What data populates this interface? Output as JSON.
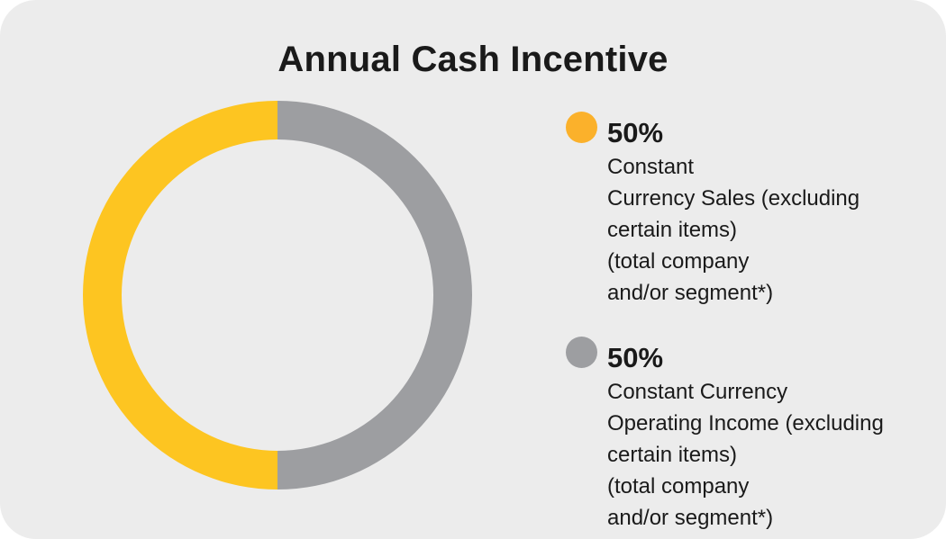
{
  "chart_data": {
    "type": "pie",
    "title": "Annual Cash Incentive",
    "donut": true,
    "slices": [
      {
        "label": "Constant\nCurrency Sales (excluding\ncertain items)\n(total company\nand/or segment*)",
        "value": 50,
        "value_label": "50%",
        "legend_color": "#fbb12b",
        "ring_color": "#fdc521"
      },
      {
        "label": "Constant Currency\nOperating Income (excluding\ncertain items)\n(total company\nand/or segment*)",
        "value": 50,
        "value_label": "50%",
        "legend_color": "#9d9ea1",
        "ring_color": "#9d9ea1"
      }
    ],
    "legend_position": "right"
  }
}
